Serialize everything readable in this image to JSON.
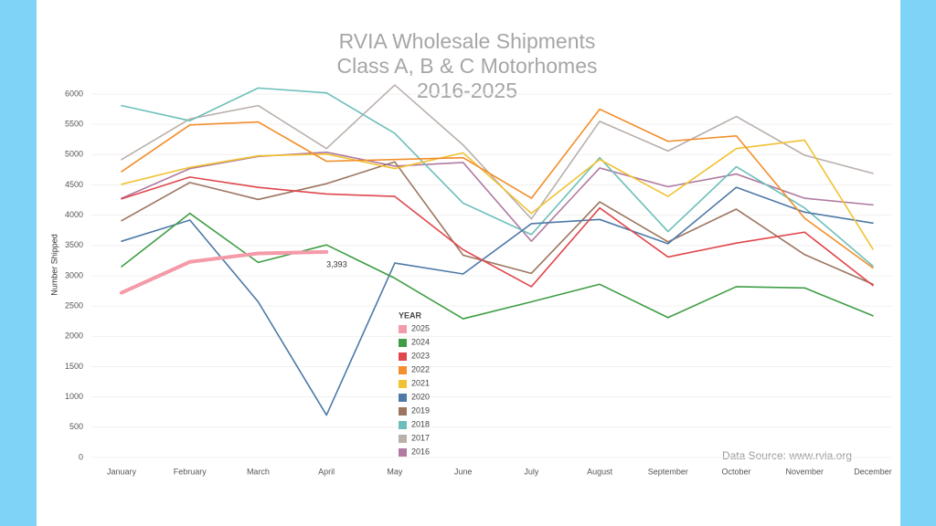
{
  "chart_data": {
    "type": "line",
    "title": [
      "RVIA Wholesale Shipments",
      "Class A, B & C Motorhomes",
      "2016-2025"
    ],
    "y_label": "Number Shipped",
    "source": "Data Source: www.rvia.org",
    "legend_title": "YEAR",
    "legend_position": "center",
    "grid": true,
    "categories": [
      "January",
      "February",
      "March",
      "April",
      "May",
      "June",
      "July",
      "August",
      "September",
      "October",
      "November",
      "December"
    ],
    "ylim": [
      0,
      6000
    ],
    "yticks": [
      0,
      500,
      1000,
      1500,
      2000,
      2500,
      3000,
      3500,
      4000,
      4500,
      5000,
      5500,
      6000
    ],
    "series": [
      {
        "name": "2025",
        "color": "#f49aa8",
        "values": [
          2720,
          3230,
          3370,
          3393,
          null,
          null,
          null,
          null,
          null,
          null,
          null,
          null
        ],
        "value_labels": [
          null,
          null,
          null,
          "3,393",
          null,
          null,
          null,
          null,
          null,
          null,
          null,
          null
        ]
      },
      {
        "name": "2024",
        "color": "#3f9e45",
        "values": [
          3150,
          4030,
          3220,
          3510,
          2960,
          2290,
          2570,
          2860,
          2310,
          2820,
          2800,
          2340
        ]
      },
      {
        "name": "2023",
        "color": "#e0474c",
        "values": [
          4270,
          4630,
          4460,
          4350,
          4310,
          3430,
          2820,
          4120,
          3310,
          3540,
          3720,
          2840
        ]
      },
      {
        "name": "2022",
        "color": "#f28e2b",
        "values": [
          4720,
          5490,
          5540,
          4890,
          4920,
          4950,
          4280,
          5750,
          5220,
          5310,
          3950,
          3130
        ]
      },
      {
        "name": "2021",
        "color": "#f1c232",
        "values": [
          4510,
          4790,
          4980,
          5010,
          4770,
          5030,
          4030,
          4920,
          4310,
          5100,
          5240,
          3440
        ]
      },
      {
        "name": "2020",
        "color": "#4e79a7",
        "values": [
          3570,
          3920,
          2570,
          700,
          3210,
          3030,
          3860,
          3930,
          3530,
          4460,
          4050,
          3870
        ]
      },
      {
        "name": "2019",
        "color": "#9c755f",
        "values": [
          3910,
          4540,
          4260,
          4520,
          4880,
          3340,
          3040,
          4220,
          3560,
          4100,
          3350,
          2860
        ]
      },
      {
        "name": "2018",
        "color": "#6cbfb9",
        "values": [
          5810,
          5560,
          6100,
          6020,
          5350,
          4200,
          3680,
          4950,
          3730,
          4800,
          4120,
          3160
        ]
      },
      {
        "name": "2017",
        "color": "#bab0ac",
        "values": [
          4920,
          5590,
          5810,
          5100,
          6150,
          5160,
          3940,
          5550,
          5060,
          5630,
          4990,
          4690
        ]
      },
      {
        "name": "2016",
        "color": "#b07aa1",
        "values": [
          4280,
          4770,
          4970,
          5040,
          4810,
          4870,
          3570,
          4780,
          4470,
          4680,
          4280,
          4170
        ]
      }
    ]
  }
}
